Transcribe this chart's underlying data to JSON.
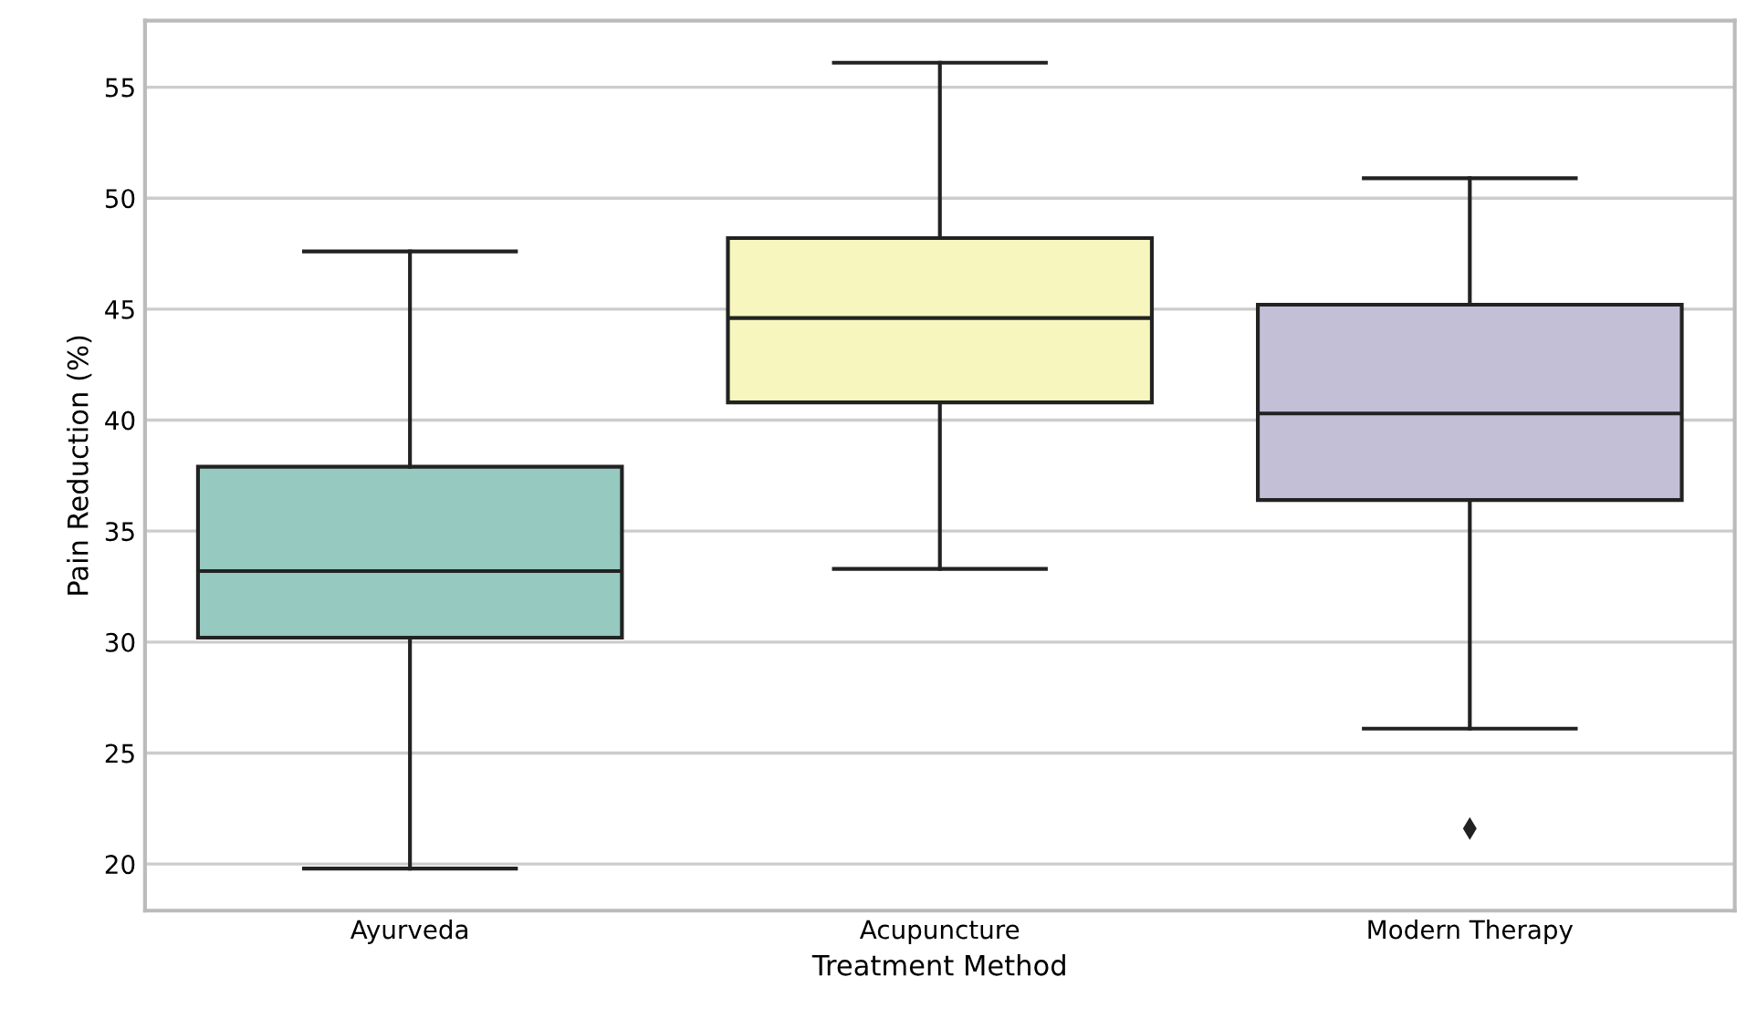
{
  "chart_data": {
    "type": "box",
    "xlabel": "Treatment Method",
    "ylabel": "Pain Reduction (%)",
    "categories": [
      "Ayurveda",
      "Acupuncture",
      "Modern Therapy"
    ],
    "colors": [
      "#96c9bf",
      "#f6f6be",
      "#c3bfd7"
    ],
    "boxes": [
      {
        "low": 19.8,
        "q1": 30.2,
        "median": 33.2,
        "q3": 37.9,
        "high": 47.6
      },
      {
        "low": 33.3,
        "q1": 40.8,
        "median": 44.6,
        "q3": 48.2,
        "high": 56.1
      },
      {
        "low": 26.1,
        "q1": 36.4,
        "median": 40.3,
        "q3": 45.2,
        "high": 50.9,
        "outliers": [
          21.6
        ]
      }
    ],
    "ylim": [
      17.9,
      58.0
    ],
    "yticks": [
      20,
      25,
      30,
      35,
      40,
      45,
      50,
      55
    ],
    "grid": "y",
    "marker": "diamond"
  }
}
